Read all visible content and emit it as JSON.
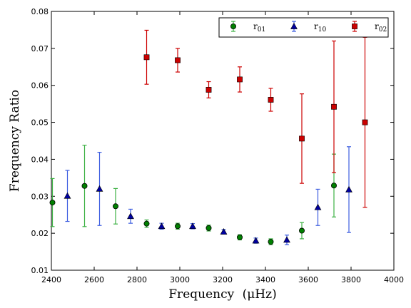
{
  "chart_data": {
    "type": "scatter",
    "xlabel_main": "Frequency",
    "xlabel_unit": "(μHz)",
    "ylabel": "Frequency Ratio",
    "xlim": [
      2400,
      4000
    ],
    "ylim": [
      0.01,
      0.08
    ],
    "xticks": [
      "2400",
      "2600",
      "2800",
      "3000",
      "3200",
      "3400",
      "3600",
      "3800",
      "4000"
    ],
    "yticks": [
      "0.01",
      "0.02",
      "0.03",
      "0.04",
      "0.05",
      "0.06",
      "0.07",
      "0.08"
    ],
    "xtick_values": [
      2400,
      2600,
      2800,
      3000,
      3200,
      3400,
      3600,
      3800,
      4000
    ],
    "ytick_values": [
      0.01,
      0.02,
      0.03,
      0.04,
      0.05,
      0.06,
      0.07,
      0.08
    ],
    "legend_position": "top-right",
    "grid": false,
    "series": [
      {
        "name": "r01",
        "name_base": "r",
        "name_sub": "01",
        "marker": "circle",
        "marker_color": "#008000",
        "error_color": "#3cb043",
        "points": [
          {
            "x": 2405,
            "y": 0.0283,
            "err": 0.0065
          },
          {
            "x": 2555,
            "y": 0.0328,
            "err": 0.011
          },
          {
            "x": 2700,
            "y": 0.0273,
            "err": 0.0048
          },
          {
            "x": 2845,
            "y": 0.0226,
            "err": 0.001
          },
          {
            "x": 2990,
            "y": 0.0219,
            "err": 0.0008
          },
          {
            "x": 3135,
            "y": 0.0214,
            "err": 0.0008
          },
          {
            "x": 3280,
            "y": 0.0189,
            "err": 0.0007
          },
          {
            "x": 3425,
            "y": 0.0177,
            "err": 0.0008
          },
          {
            "x": 3570,
            "y": 0.0207,
            "err": 0.0022
          },
          {
            "x": 3720,
            "y": 0.0329,
            "err": 0.0085
          }
        ]
      },
      {
        "name": "r10",
        "name_base": "r",
        "name_sub": "10",
        "marker": "triangle",
        "marker_color": "#0000a0",
        "error_color": "#3c5de0",
        "points": [
          {
            "x": 2475,
            "y": 0.0301,
            "err": 0.0069
          },
          {
            "x": 2625,
            "y": 0.032,
            "err": 0.0099
          },
          {
            "x": 2770,
            "y": 0.0246,
            "err": 0.0019
          },
          {
            "x": 2915,
            "y": 0.0219,
            "err": 0.0008
          },
          {
            "x": 3060,
            "y": 0.0219,
            "err": 0.0007
          },
          {
            "x": 3205,
            "y": 0.0204,
            "err": 0.0006
          },
          {
            "x": 3355,
            "y": 0.018,
            "err": 0.0007
          },
          {
            "x": 3500,
            "y": 0.0182,
            "err": 0.0013
          },
          {
            "x": 3645,
            "y": 0.027,
            "err": 0.0049
          },
          {
            "x": 3790,
            "y": 0.0318,
            "err": 0.0116
          }
        ]
      },
      {
        "name": "r02",
        "name_base": "r",
        "name_sub": "02",
        "marker": "square",
        "marker_color": "#cc0000",
        "error_color": "#cc0000",
        "points": [
          {
            "x": 2845,
            "y": 0.0676,
            "err": 0.0073
          },
          {
            "x": 2990,
            "y": 0.0668,
            "err": 0.0032
          },
          {
            "x": 3135,
            "y": 0.0588,
            "err": 0.0022
          },
          {
            "x": 3280,
            "y": 0.0616,
            "err": 0.0034
          },
          {
            "x": 3425,
            "y": 0.0561,
            "err": 0.0031
          },
          {
            "x": 3570,
            "y": 0.0456,
            "err": 0.0121
          },
          {
            "x": 3720,
            "y": 0.0542,
            "err": 0.0178
          },
          {
            "x": 3865,
            "y": 0.05,
            "err": 0.023
          }
        ]
      }
    ]
  }
}
